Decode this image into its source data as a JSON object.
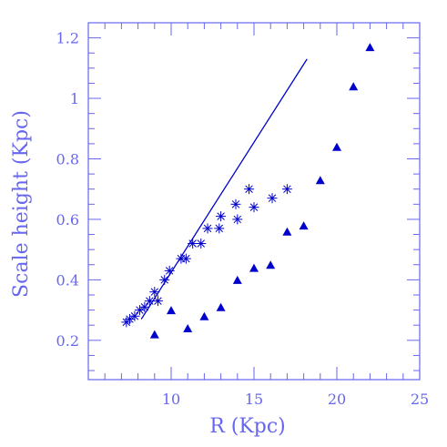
{
  "chart_data": {
    "type": "scatter",
    "title": "",
    "xlabel": "R (Kpc)",
    "ylabel": "Scale height (Kpc)",
    "xlim": [
      5,
      25
    ],
    "ylim": [
      0.07,
      1.25
    ],
    "x_ticks": [
      10,
      15,
      20,
      25
    ],
    "y_ticks": [
      0.2,
      0.4,
      0.6,
      0.8,
      1,
      1.2
    ],
    "x_tick_labels": [
      "10",
      "15",
      "20",
      "25"
    ],
    "y_tick_labels": [
      "0.2",
      "0.4",
      "0.6",
      "0.8",
      "1",
      "1.2"
    ],
    "grid": false,
    "legend": "none",
    "colors": {
      "axis": "#6666ee",
      "marks": "#0000cc"
    },
    "series": [
      {
        "marker": "asterisk",
        "points": [
          [
            7.3,
            0.26
          ],
          [
            7.5,
            0.27
          ],
          [
            7.8,
            0.28
          ],
          [
            8.1,
            0.3
          ],
          [
            8.4,
            0.31
          ],
          [
            8.7,
            0.33
          ],
          [
            9.0,
            0.36
          ],
          [
            9.2,
            0.33
          ],
          [
            9.6,
            0.4
          ],
          [
            9.9,
            0.43
          ],
          [
            10.6,
            0.47
          ],
          [
            10.9,
            0.47
          ],
          [
            11.3,
            0.52
          ],
          [
            11.8,
            0.52
          ],
          [
            12.2,
            0.57
          ],
          [
            12.9,
            0.57
          ],
          [
            13.0,
            0.61
          ],
          [
            13.9,
            0.65
          ],
          [
            14.0,
            0.6
          ],
          [
            14.7,
            0.7
          ],
          [
            15.0,
            0.64
          ],
          [
            16.1,
            0.67
          ],
          [
            17.0,
            0.7
          ]
        ]
      },
      {
        "marker": "filled-triangle",
        "points": [
          [
            9.0,
            0.22
          ],
          [
            10.0,
            0.3
          ],
          [
            11.0,
            0.24
          ],
          [
            12.0,
            0.28
          ],
          [
            13.0,
            0.31
          ],
          [
            14.0,
            0.4
          ],
          [
            15.0,
            0.44
          ],
          [
            16.0,
            0.45
          ],
          [
            17.0,
            0.56
          ],
          [
            18.0,
            0.58
          ],
          [
            19.0,
            0.73
          ],
          [
            20.0,
            0.84
          ],
          [
            21.0,
            1.04
          ],
          [
            22.0,
            1.17
          ]
        ]
      },
      {
        "marker": "line",
        "points": [
          [
            8.2,
            0.27
          ],
          [
            18.2,
            1.13
          ]
        ]
      }
    ]
  }
}
